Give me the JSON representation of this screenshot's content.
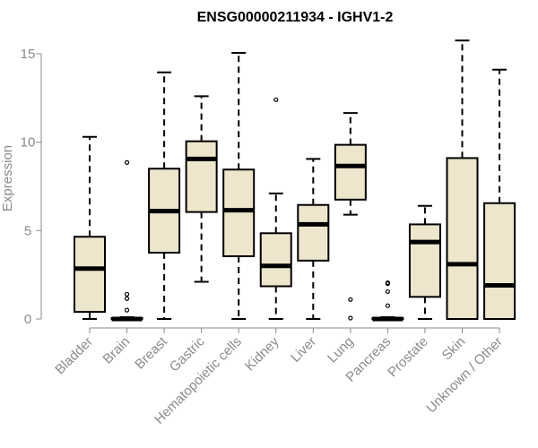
{
  "chart_data": {
    "type": "boxplot",
    "title": "ENSG00000211934 - IGHV1-2",
    "xlabel": "",
    "ylabel": "Expression",
    "ylim": [
      0,
      15.8
    ],
    "yticks": [
      0,
      5,
      10,
      15
    ],
    "grid": false,
    "box_fill": "#ede6cc",
    "categories": [
      "Bladder",
      "Brain",
      "Breast",
      "Gastric",
      "Hematopoietic cells",
      "Kidney",
      "Liver",
      "Lung",
      "Pancreas",
      "Prostate",
      "Skin",
      "Unknown / Other"
    ],
    "series": [
      {
        "values": [
          {
            "whisker_low": 0.0,
            "q1": 0.4,
            "median": 2.85,
            "q3": 4.65,
            "whisker_high": 10.3,
            "outliers": []
          },
          {
            "whisker_low": 0.0,
            "q1": 0.0,
            "median": 0.0,
            "q3": 0.05,
            "whisker_high": 0.1,
            "outliers": [
              8.85,
              1.4,
              1.15,
              0.5
            ]
          },
          {
            "whisker_low": 0.0,
            "q1": 3.75,
            "median": 6.1,
            "q3": 8.5,
            "whisker_high": 13.95,
            "outliers": []
          },
          {
            "whisker_low": 2.1,
            "q1": 6.05,
            "median": 9.05,
            "q3": 10.05,
            "whisker_high": 12.6,
            "outliers": []
          },
          {
            "whisker_low": 0.0,
            "q1": 3.55,
            "median": 6.15,
            "q3": 8.45,
            "whisker_high": 15.05,
            "outliers": []
          },
          {
            "whisker_low": 0.0,
            "q1": 1.85,
            "median": 3.0,
            "q3": 4.85,
            "whisker_high": 7.1,
            "outliers": [
              12.4
            ]
          },
          {
            "whisker_low": 0.0,
            "q1": 3.3,
            "median": 5.35,
            "q3": 6.45,
            "whisker_high": 9.05,
            "outliers": []
          },
          {
            "whisker_low": 5.9,
            "q1": 6.75,
            "median": 8.65,
            "q3": 9.85,
            "whisker_high": 11.65,
            "outliers": [
              1.1,
              0.05
            ]
          },
          {
            "whisker_low": 0.0,
            "q1": 0.0,
            "median": 0.0,
            "q3": 0.05,
            "whisker_high": 0.1,
            "outliers": [
              2.05,
              1.55,
              0.75,
              2.0
            ]
          },
          {
            "whisker_low": 0.0,
            "q1": 1.25,
            "median": 4.35,
            "q3": 5.35,
            "whisker_high": 6.4,
            "outliers": []
          },
          {
            "whisker_low": 0.0,
            "q1": 0.0,
            "median": 3.1,
            "q3": 9.1,
            "whisker_high": 15.75,
            "outliers": []
          },
          {
            "whisker_low": 0.0,
            "q1": 0.0,
            "median": 1.9,
            "q3": 6.55,
            "whisker_high": 14.1,
            "outliers": []
          }
        ]
      }
    ]
  }
}
